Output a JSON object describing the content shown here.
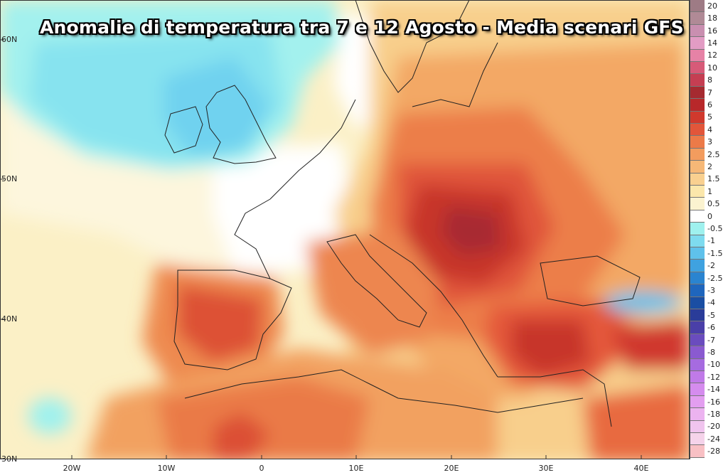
{
  "title": "Anomalie di temperatura tra 7 e 12 Agosto - Media scenari GFS",
  "lat_ticks": [
    {
      "label": "60N",
      "value": 60
    },
    {
      "label": "50N",
      "value": 50
    },
    {
      "label": "40N",
      "value": 40
    },
    {
      "label": "30N",
      "value": 30
    }
  ],
  "lon_ticks": [
    {
      "label": "20W",
      "value": -20
    },
    {
      "label": "10W",
      "value": -10
    },
    {
      "label": "0",
      "value": 0
    },
    {
      "label": "10E",
      "value": 10
    },
    {
      "label": "20E",
      "value": 20
    },
    {
      "label": "30E",
      "value": 30
    },
    {
      "label": "40E",
      "value": 40
    }
  ],
  "legend": [
    {
      "label": "20",
      "color": "#9e7b85"
    },
    {
      "label": "18",
      "color": "#b08a96"
    },
    {
      "label": "16",
      "color": "#c98fb0"
    },
    {
      "label": "14",
      "color": "#e29cc4"
    },
    {
      "label": "12",
      "color": "#e682a6"
    },
    {
      "label": "10",
      "color": "#d75a78"
    },
    {
      "label": "8",
      "color": "#c53e52"
    },
    {
      "label": "7",
      "color": "#a52a30"
    },
    {
      "label": "6",
      "color": "#b8282a"
    },
    {
      "label": "5",
      "color": "#d0392d"
    },
    {
      "label": "4",
      "color": "#e2563a"
    },
    {
      "label": "3",
      "color": "#ec7a48"
    },
    {
      "label": "2.5",
      "color": "#f39c5e"
    },
    {
      "label": "2",
      "color": "#f6b877"
    },
    {
      "label": "1.5",
      "color": "#f9d090"
    },
    {
      "label": "1",
      "color": "#fbe7ab"
    },
    {
      "label": "0.5",
      "color": "#fbf3d0"
    },
    {
      "label": "0",
      "color": "#ffffff"
    },
    {
      "label": "-0.5",
      "color": "#9ff1ee"
    },
    {
      "label": "-1",
      "color": "#7edbef"
    },
    {
      "label": "-1.5",
      "color": "#5fc1eb"
    },
    {
      "label": "-2",
      "color": "#3fa2e0"
    },
    {
      "label": "-2.5",
      "color": "#2a84d0"
    },
    {
      "label": "-3",
      "color": "#1f66bd"
    },
    {
      "label": "-4",
      "color": "#1a4ea3"
    },
    {
      "label": "-5",
      "color": "#2a3c99"
    },
    {
      "label": "-6",
      "color": "#4a3fa8"
    },
    {
      "label": "-7",
      "color": "#6a4cbe"
    },
    {
      "label": "-8",
      "color": "#8a5ad0"
    },
    {
      "label": "-10",
      "color": "#a66be0"
    },
    {
      "label": "-12",
      "color": "#c07ae8"
    },
    {
      "label": "-14",
      "color": "#d58cee"
    },
    {
      "label": "-16",
      "color": "#e39ef0"
    },
    {
      "label": "-18",
      "color": "#ecb3f0"
    },
    {
      "label": "-20",
      "color": "#f0c4ee"
    },
    {
      "label": "-24",
      "color": "#f5d3ea"
    },
    {
      "label": "-28",
      "color": "#f8c0c4"
    }
  ]
}
